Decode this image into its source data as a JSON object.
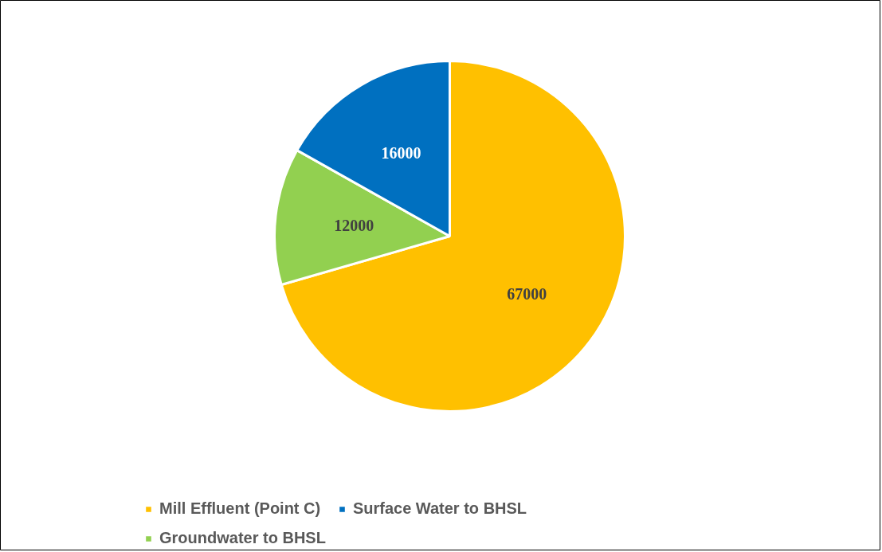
{
  "chart_data": {
    "type": "pie",
    "categories": [
      "Mill Effluent (Point C)",
      "Groundwater to BHSL",
      "Surface Water to BHSL"
    ],
    "values": [
      67000,
      12000,
      16000
    ],
    "colors": [
      "#ffc000",
      "#92d050",
      "#0070c0"
    ],
    "data_labels": true,
    "legend": "bottom"
  }
}
